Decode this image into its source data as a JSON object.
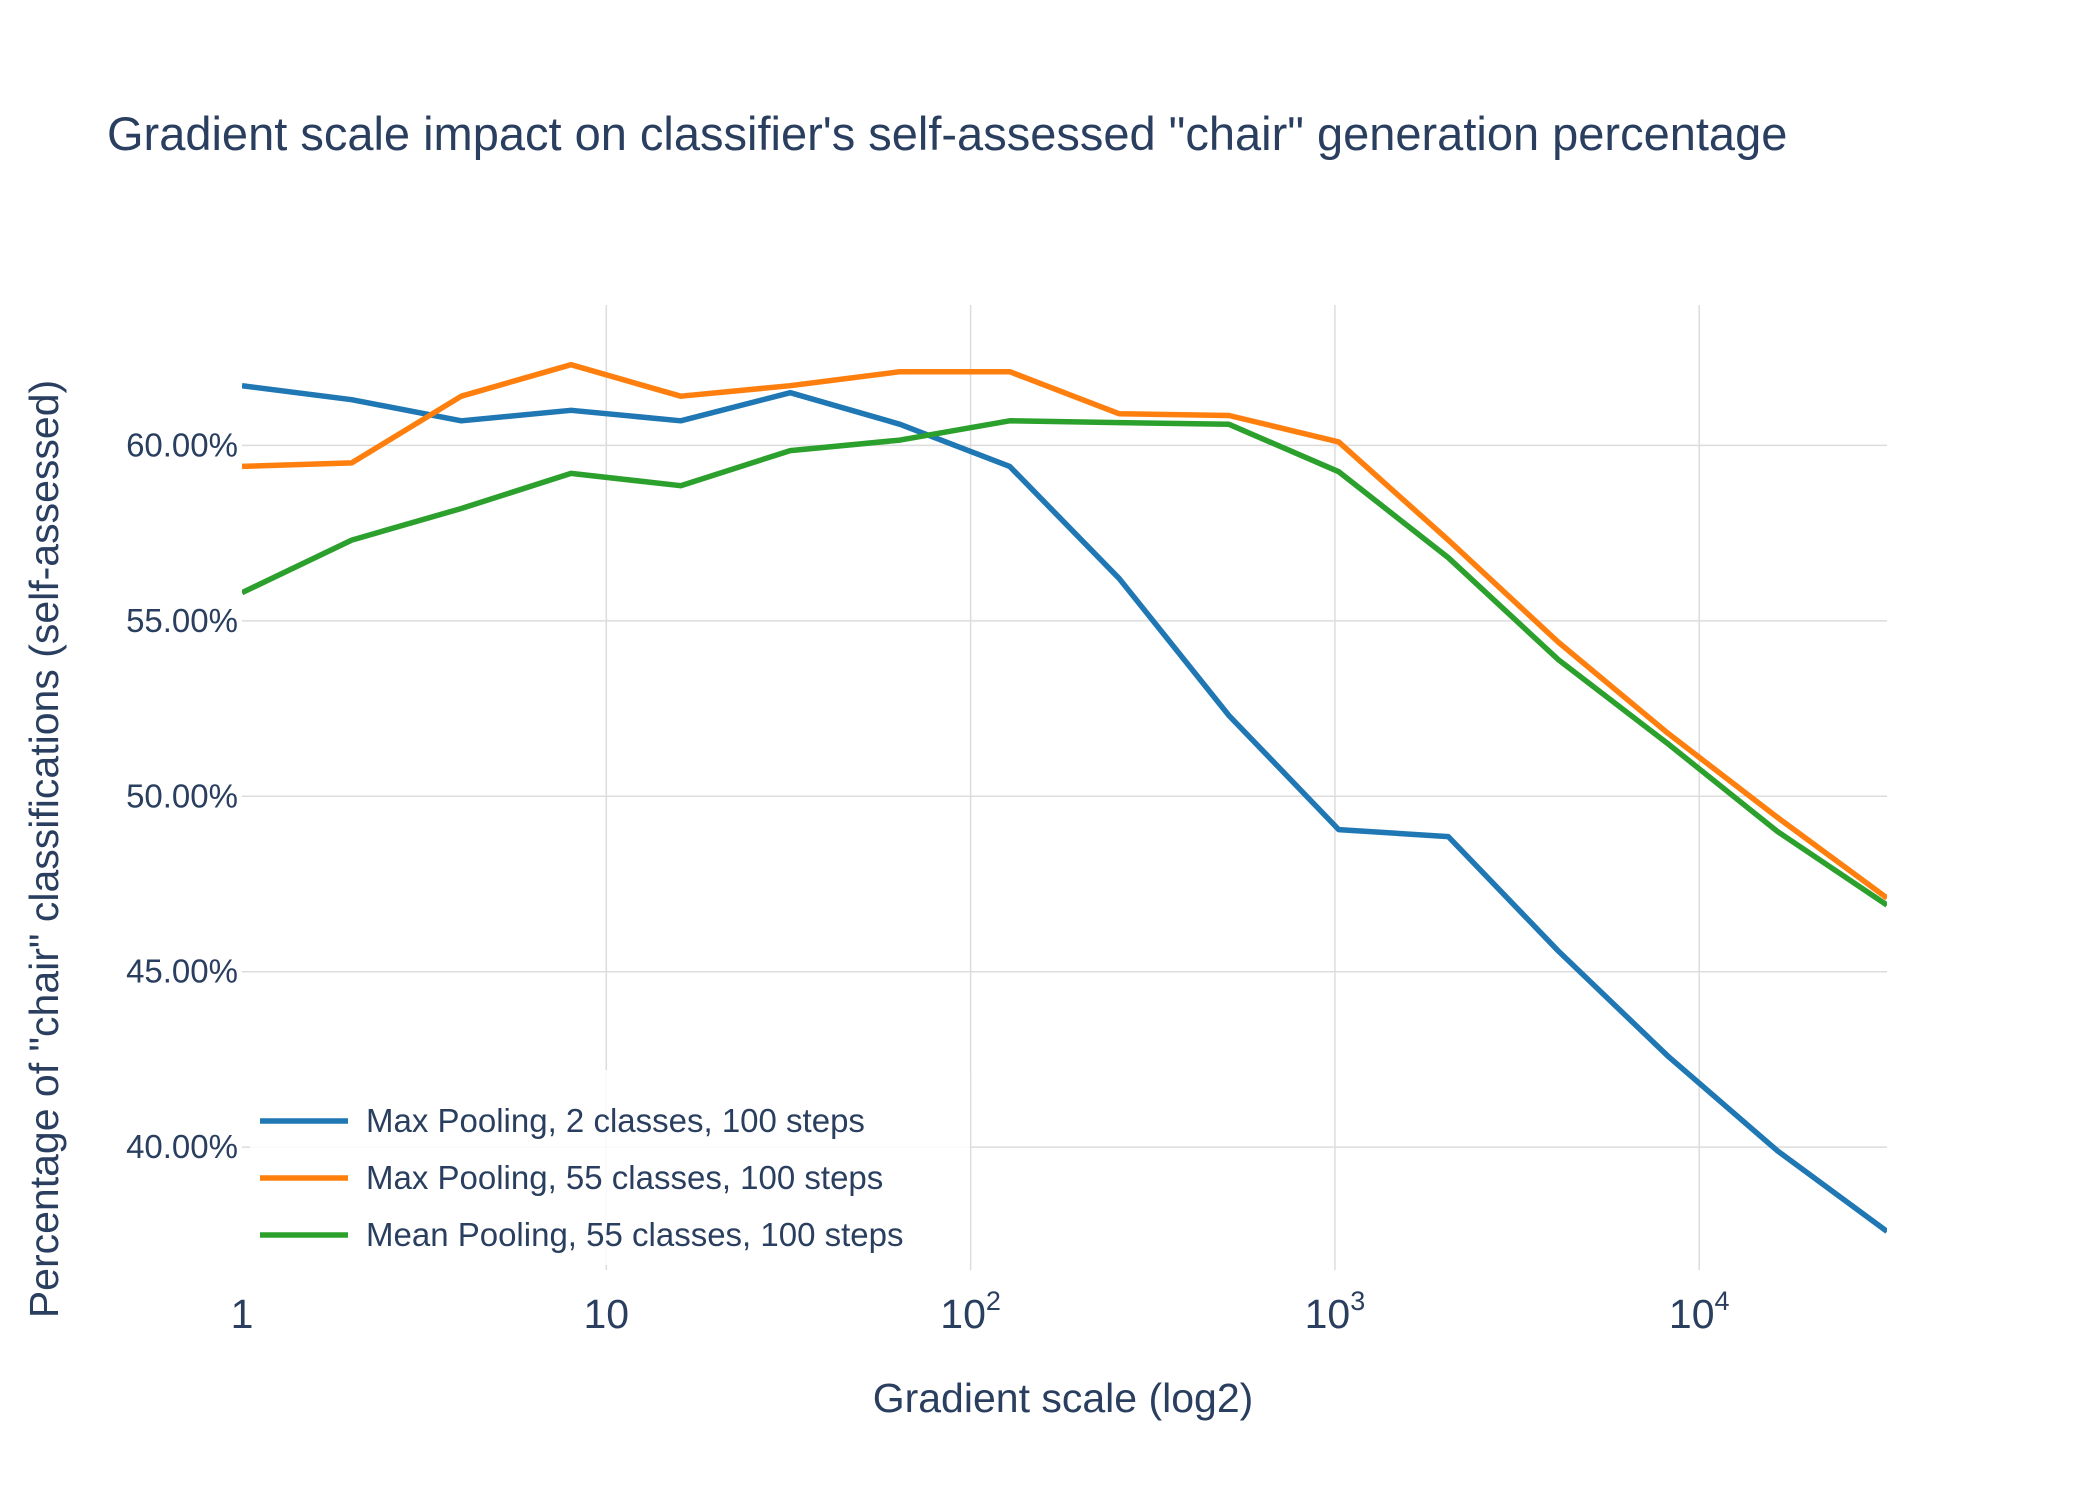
{
  "chart_data": {
    "type": "line",
    "title": "Gradient scale impact on classifier's self-assessed \"chair\" generation percentage",
    "xlabel": "Gradient scale (log2)",
    "ylabel": "Percentage of \"chair\" classifications (self-assessed)",
    "x_scale": "log",
    "xlim": [
      1,
      32768
    ],
    "ylim": [
      36.5,
      64
    ],
    "x_ticks": [
      {
        "value": 1,
        "base": "1",
        "exp": ""
      },
      {
        "value": 10,
        "base": "10",
        "exp": ""
      },
      {
        "value": 100,
        "base": "10",
        "exp": "2"
      },
      {
        "value": 1000,
        "base": "10",
        "exp": "3"
      },
      {
        "value": 10000,
        "base": "10",
        "exp": "4"
      }
    ],
    "y_ticks": [
      {
        "value": 40,
        "label": "40.00%"
      },
      {
        "value": 45,
        "label": "45.00%"
      },
      {
        "value": 50,
        "label": "50.00%"
      },
      {
        "value": 55,
        "label": "55.00%"
      },
      {
        "value": 60,
        "label": "60.00%"
      }
    ],
    "grid": true,
    "legend_position": "bottom-left",
    "x": [
      1,
      2,
      4,
      8,
      16,
      32,
      64,
      128,
      256,
      512,
      1024,
      2048,
      4096,
      8192,
      16384,
      32768
    ],
    "series": [
      {
        "name": "Max Pooling, 2 classes, 100 steps",
        "color": "#1f77b4",
        "values": [
          61.7,
          61.3,
          60.7,
          61.0,
          60.7,
          61.5,
          60.6,
          59.4,
          56.2,
          52.3,
          49.05,
          48.85,
          45.6,
          42.6,
          39.9,
          37.6
        ]
      },
      {
        "name": "Max Pooling, 55 classes, 100 steps",
        "color": "#ff7f0e",
        "values": [
          59.4,
          59.5,
          61.4,
          62.3,
          61.4,
          61.7,
          62.1,
          62.1,
          60.9,
          60.85,
          60.1,
          57.3,
          54.4,
          51.8,
          49.4,
          47.1
        ]
      },
      {
        "name": "Mean Pooling, 55 classes, 100 steps",
        "color": "#2ca02c",
        "values": [
          55.8,
          57.3,
          58.2,
          59.2,
          58.85,
          59.85,
          60.15,
          60.7,
          60.65,
          60.6,
          59.25,
          56.8,
          53.9,
          51.5,
          49.0,
          46.9
        ]
      }
    ]
  }
}
